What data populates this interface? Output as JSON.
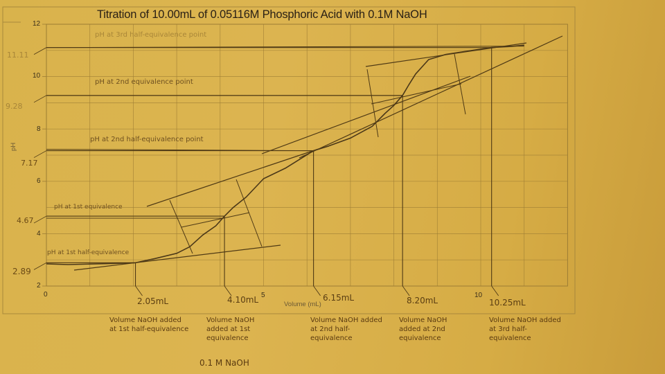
{
  "title": "Titration of 10.00mL of 0.05116M Phosphoric Acid with 0.1M NaOH",
  "axes": {
    "x_label": "Volume (mL)",
    "y_label": "pH",
    "x_ticks": [
      "0",
      "5",
      "10"
    ],
    "y_ticks": [
      "2",
      "4",
      "6",
      "8",
      "10",
      "12"
    ]
  },
  "y_annotations": [
    "11.11",
    "9.28",
    "7.17",
    "4.67",
    "2.89"
  ],
  "x_annotations": [
    "2.05mL",
    "4.10mL",
    "6.15mL",
    "8.20mL",
    "10.25mL"
  ],
  "in_plot_labels": {
    "third_half_eq": "pH at 3rd half-equivalence point",
    "second_eq": "pH at 2nd equivalence point",
    "second_half_eq": "pH at 2nd half-equivalence point",
    "first_eq": "pH at 1st equivalence",
    "first_half_eq": "pH at 1st half-equivalence"
  },
  "bottom_notes": [
    "Volume NaOH added at 1st half-equivalence",
    "Volume NaOH added at 1st equivalence",
    "Volume NaOH added at 2nd half-equivalence",
    "Volume NaOH added at 2nd equivalence",
    "Volume NaOH added at 3rd half-equivalence"
  ],
  "bottom_caption": "0.1 M NaOH",
  "colors": {
    "paper": "#d9b34c",
    "grid": "#9c7c34",
    "curve": "#4a3718",
    "ink": "#5a3d12"
  },
  "chart_data": {
    "type": "line",
    "title": "Titration of 10.00mL of 0.05116M Phosphoric Acid with 0.1M NaOH",
    "xlabel": "Volume (mL)",
    "ylabel": "pH",
    "xlim": [
      0,
      12
    ],
    "ylim": [
      2,
      12
    ],
    "grid": true,
    "x": [
      0,
      0.5,
      1.0,
      1.5,
      2.05,
      2.5,
      3.0,
      3.3,
      3.6,
      3.9,
      4.1,
      4.3,
      4.6,
      5.0,
      5.5,
      6.15,
      6.5,
      7.0,
      7.5,
      7.8,
      8.0,
      8.2,
      8.35,
      8.5,
      8.8,
      9.2,
      9.6,
      10.25,
      10.7,
      11.0
    ],
    "series": [
      {
        "name": "pH",
        "values": [
          2.85,
          2.82,
          2.84,
          2.86,
          2.89,
          3.05,
          3.25,
          3.5,
          3.95,
          4.3,
          4.67,
          5.0,
          5.4,
          6.1,
          6.5,
          7.17,
          7.35,
          7.65,
          8.1,
          8.6,
          8.9,
          9.28,
          9.7,
          10.1,
          10.65,
          10.85,
          10.95,
          11.11,
          11.15,
          11.2
        ]
      }
    ],
    "annotations": [
      {
        "label": "1st half-equivalence",
        "volume_mL": 2.05,
        "pH": 2.89
      },
      {
        "label": "1st equivalence",
        "volume_mL": 4.1,
        "pH": 4.67
      },
      {
        "label": "2nd half-equivalence",
        "volume_mL": 6.15,
        "pH": 7.17
      },
      {
        "label": "2nd equivalence",
        "volume_mL": 8.2,
        "pH": 9.28
      },
      {
        "label": "3rd half-equivalence",
        "volume_mL": 10.25,
        "pH": 11.11
      }
    ]
  }
}
